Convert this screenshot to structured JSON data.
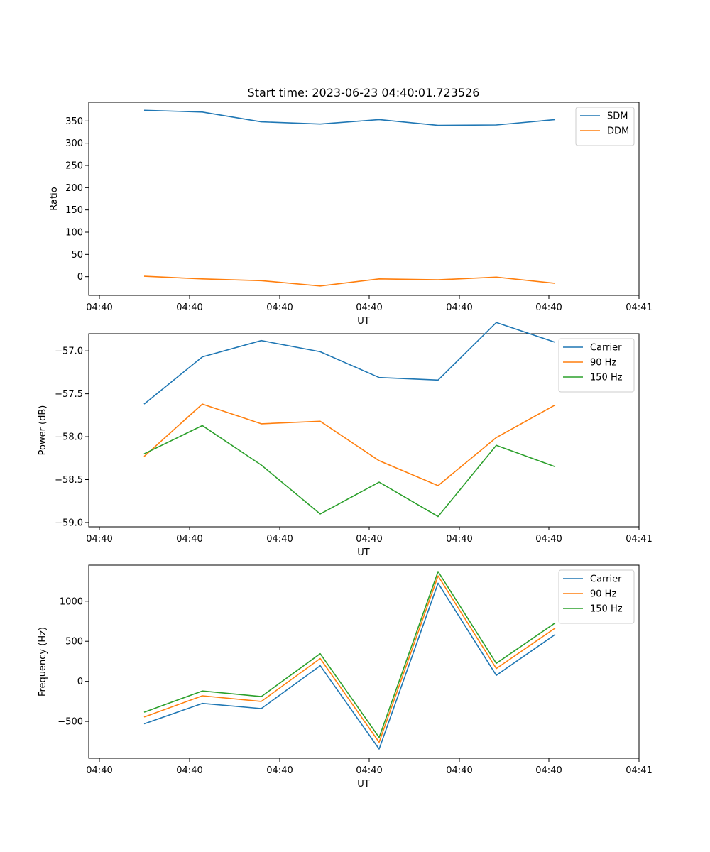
{
  "figure": {
    "title": "Start time: 2023-06-23 04:40:01.723526",
    "xlabel": "UT"
  },
  "chart_data": [
    {
      "type": "line",
      "ylabel": "Ratio",
      "x_tick_labels": [
        "04:40",
        "04:40",
        "04:40",
        "04:40",
        "04:40",
        "04:40",
        "04:41"
      ],
      "y_ticks": [
        0,
        50,
        100,
        150,
        200,
        250,
        300,
        350
      ],
      "ylim": [
        -42,
        392
      ],
      "legend_loc": "upper-right",
      "series": [
        {
          "name": "SDM",
          "color": "#1f77b4",
          "values": [
            374,
            370,
            348,
            343,
            353,
            340,
            341,
            353
          ]
        },
        {
          "name": "DDM",
          "color": "#ff7f0e",
          "values": [
            1,
            -5,
            -9,
            -21,
            -5,
            -7,
            -1,
            -15
          ]
        }
      ]
    },
    {
      "type": "line",
      "ylabel": "Power (dB)",
      "x_tick_labels": [
        "04:40",
        "04:40",
        "04:40",
        "04:40",
        "04:40",
        "04:40",
        "04:41"
      ],
      "y_ticks": [
        -59.0,
        -58.5,
        -58.0,
        -57.5,
        -57.0
      ],
      "y_tick_labels": [
        "−59.0",
        "−58.5",
        "−58.0",
        "−57.5",
        "−57.0"
      ],
      "ylim": [
        -59.05,
        -56.8
      ],
      "legend_loc": "upper-right",
      "series": [
        {
          "name": "Carrier",
          "color": "#1f77b4",
          "values": [
            -57.62,
            -57.07,
            -56.88,
            -57.01,
            -57.31,
            -57.34,
            -56.67,
            -56.9
          ]
        },
        {
          "name": "90 Hz",
          "color": "#ff7f0e",
          "values": [
            -58.23,
            -57.62,
            -57.85,
            -57.82,
            -58.28,
            -58.57,
            -58.01,
            -57.63
          ]
        },
        {
          "name": "150 Hz",
          "color": "#2ca02c",
          "values": [
            -58.2,
            -57.87,
            -58.33,
            -58.9,
            -58.53,
            -58.93,
            -58.1,
            -58.35
          ]
        }
      ]
    },
    {
      "type": "line",
      "ylabel": "Frequency (Hz)",
      "x_tick_labels": [
        "04:40",
        "04:40",
        "04:40",
        "04:40",
        "04:40",
        "04:40",
        "04:41"
      ],
      "y_ticks": [
        -500,
        0,
        500,
        1000
      ],
      "y_tick_labels": [
        "−500",
        "0",
        "500",
        "1000"
      ],
      "ylim": [
        -960,
        1450
      ],
      "legend_loc": "upper-right",
      "series": [
        {
          "name": "Carrier",
          "color": "#1f77b4",
          "values": [
            -530,
            -275,
            -340,
            195,
            -845,
            1225,
            75,
            585
          ]
        },
        {
          "name": "90 Hz",
          "color": "#ff7f0e",
          "values": [
            -445,
            -180,
            -250,
            285,
            -760,
            1315,
            160,
            665
          ]
        },
        {
          "name": "150 Hz",
          "color": "#2ca02c",
          "values": [
            -385,
            -120,
            -190,
            345,
            -700,
            1370,
            225,
            730
          ]
        }
      ]
    }
  ]
}
